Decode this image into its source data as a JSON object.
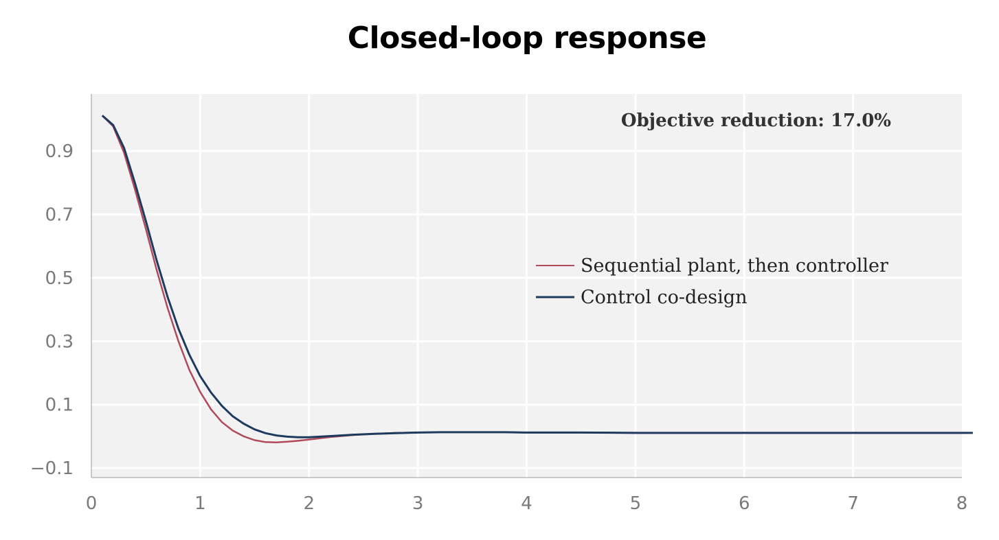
{
  "chart_data": {
    "type": "line",
    "title": "Closed-loop response",
    "xlabel": "",
    "ylabel": "",
    "xlim": [
      0,
      8
    ],
    "ylim": [
      -0.13,
      1.08
    ],
    "x_ticks": [
      {
        "value": 0,
        "label": "0"
      },
      {
        "value": 1,
        "label": "1"
      },
      {
        "value": 2,
        "label": "2"
      },
      {
        "value": 3,
        "label": "3"
      },
      {
        "value": 4,
        "label": "4"
      },
      {
        "value": 5,
        "label": "5"
      },
      {
        "value": 6,
        "label": "6"
      },
      {
        "value": 7,
        "label": "7"
      },
      {
        "value": 8,
        "label": "8"
      }
    ],
    "y_ticks": [
      {
        "value": -0.1,
        "label": "−0.1"
      },
      {
        "value": 0.1,
        "label": "0.1"
      },
      {
        "value": 0.3,
        "label": "0.3"
      },
      {
        "value": 0.5,
        "label": "0.5"
      },
      {
        "value": 0.7,
        "label": "0.7"
      },
      {
        "value": 0.9,
        "label": "0.9"
      }
    ],
    "grid": true,
    "background": "#f2f2f2",
    "legend_position": "center-right",
    "annotation": "Objective reduction: 17.0%",
    "series": [
      {
        "name": "Sequential plant, then controller",
        "color": "#b04a5a",
        "x": [
          0.1,
          0.2,
          0.3,
          0.4,
          0.5,
          0.6,
          0.7,
          0.8,
          0.9,
          1.0,
          1.1,
          1.2,
          1.3,
          1.4,
          1.5,
          1.6,
          1.7,
          1.8,
          1.9,
          2.0,
          2.2,
          2.4,
          2.6,
          2.8,
          3.0,
          3.2,
          3.4,
          3.6,
          3.8,
          4.0,
          4.5,
          5.0,
          5.5,
          6.0,
          6.5,
          7.0,
          7.5,
          8.1
        ],
        "y": [
          1.012,
          0.978,
          0.895,
          0.78,
          0.655,
          0.525,
          0.405,
          0.3,
          0.21,
          0.14,
          0.085,
          0.045,
          0.018,
          0.0,
          -0.012,
          -0.018,
          -0.019,
          -0.017,
          -0.014,
          -0.01,
          -0.002,
          0.004,
          0.008,
          0.011,
          0.012,
          0.013,
          0.013,
          0.013,
          0.013,
          0.012,
          0.012,
          0.011,
          0.011,
          0.011,
          0.011,
          0.011,
          0.011,
          0.011
        ]
      },
      {
        "name": "Control co-design",
        "color": "#1e3a5f",
        "x": [
          0.1,
          0.2,
          0.3,
          0.4,
          0.5,
          0.6,
          0.7,
          0.8,
          0.9,
          1.0,
          1.1,
          1.2,
          1.3,
          1.4,
          1.5,
          1.6,
          1.7,
          1.8,
          1.9,
          2.0,
          2.2,
          2.4,
          2.6,
          2.8,
          3.0,
          3.2,
          3.4,
          3.6,
          3.8,
          4.0,
          4.5,
          5.0,
          5.5,
          6.0,
          6.5,
          7.0,
          7.5,
          8.1
        ],
        "y": [
          1.012,
          0.982,
          0.91,
          0.8,
          0.68,
          0.555,
          0.44,
          0.34,
          0.258,
          0.19,
          0.138,
          0.096,
          0.063,
          0.04,
          0.022,
          0.01,
          0.003,
          -0.001,
          -0.003,
          -0.003,
          0.001,
          0.005,
          0.008,
          0.01,
          0.012,
          0.013,
          0.013,
          0.013,
          0.013,
          0.012,
          0.012,
          0.011,
          0.011,
          0.011,
          0.011,
          0.011,
          0.011,
          0.011
        ]
      }
    ]
  }
}
